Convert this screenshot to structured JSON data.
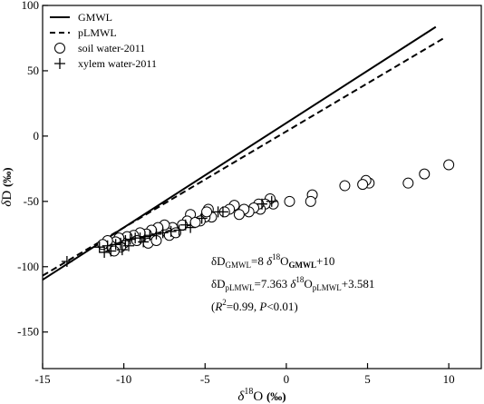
{
  "chart_data": {
    "type": "scatter",
    "title": "",
    "xlabel": {
      "prefix": "δ",
      "sup": "18",
      "main": "O",
      "unit": "(‰)"
    },
    "ylabel": {
      "prefix": "δ",
      "main": "D",
      "unit": "(‰)"
    },
    "xlim": [
      -15,
      12
    ],
    "ylim": [
      -178,
      100
    ],
    "xticks": [
      "-15",
      "-10",
      "-5",
      "0",
      "5",
      "10"
    ],
    "yticks": [
      "100",
      "50",
      "0",
      "-50",
      "-100",
      "-150"
    ],
    "legend_position": "top-left",
    "legend": [
      {
        "label": "GMWL",
        "symbol": "solid-line"
      },
      {
        "label": "pLMWL",
        "symbol": "dashed-line"
      },
      {
        "label": "soil water-2011",
        "symbol": "open-circle"
      },
      {
        "label": "xylem water-2011",
        "symbol": "plus"
      }
    ],
    "lines": [
      {
        "name": "GMWL",
        "slope": 8,
        "intercept": 10,
        "x_range": [
          -15,
          9.2
        ],
        "style": "solid"
      },
      {
        "name": "pLMWL",
        "slope": 7.363,
        "intercept": 3.581,
        "x_range": [
          -15,
          9.8
        ],
        "style": "dashed"
      }
    ],
    "series": [
      {
        "name": "soil water-2011",
        "marker": "circle",
        "points": [
          [
            10.0,
            -22
          ],
          [
            8.5,
            -29
          ],
          [
            7.5,
            -36
          ],
          [
            5.1,
            -36
          ],
          [
            4.9,
            -34
          ],
          [
            4.7,
            -37
          ],
          [
            3.6,
            -38
          ],
          [
            1.6,
            -45
          ],
          [
            1.5,
            -50
          ],
          [
            0.2,
            -50
          ],
          [
            -0.8,
            -52
          ],
          [
            -1.0,
            -48
          ],
          [
            -1.3,
            -52
          ],
          [
            -1.6,
            -56
          ],
          [
            -1.7,
            -52
          ],
          [
            -2.0,
            -55
          ],
          [
            -2.3,
            -58
          ],
          [
            -2.6,
            -56
          ],
          [
            -2.9,
            -60
          ],
          [
            -3.2,
            -53
          ],
          [
            -3.5,
            -56
          ],
          [
            -3.8,
            -58
          ],
          [
            -4.6,
            -62
          ],
          [
            -4.8,
            -56
          ],
          [
            -5.0,
            -62
          ],
          [
            -5.3,
            -65
          ],
          [
            -5.9,
            -60
          ],
          [
            -6.1,
            -65
          ],
          [
            -7.0,
            -70
          ],
          [
            -7.3,
            -74
          ],
          [
            -7.5,
            -68
          ],
          [
            -7.9,
            -70
          ],
          [
            -8.3,
            -72
          ],
          [
            -8.6,
            -75
          ],
          [
            -9.0,
            -74
          ],
          [
            -9.4,
            -76
          ],
          [
            -9.8,
            -77
          ],
          [
            -10.0,
            -82
          ],
          [
            -10.3,
            -78
          ],
          [
            -10.5,
            -81
          ],
          [
            -10.2,
            -85
          ],
          [
            -10.8,
            -84
          ],
          [
            -11.0,
            -80
          ],
          [
            -11.3,
            -83
          ],
          [
            -10.6,
            -88
          ],
          [
            -8.5,
            -82
          ],
          [
            -8.0,
            -80
          ],
          [
            -7.2,
            -76
          ],
          [
            -6.8,
            -74
          ],
          [
            -5.6,
            -66
          ],
          [
            -6.4,
            -68
          ],
          [
            -4.9,
            -58
          ],
          [
            -9.2,
            -80
          ]
        ]
      },
      {
        "name": "xylem water-2011",
        "marker": "plus",
        "points": [
          [
            -13.5,
            -96
          ],
          [
            -11.5,
            -85
          ],
          [
            -11.0,
            -84
          ],
          [
            -11.2,
            -89
          ],
          [
            -10.8,
            -88
          ],
          [
            -10.5,
            -83
          ],
          [
            -10.2,
            -82
          ],
          [
            -9.9,
            -80
          ],
          [
            -9.6,
            -79
          ],
          [
            -9.3,
            -78
          ],
          [
            -9.0,
            -78
          ],
          [
            -8.7,
            -77
          ],
          [
            -8.4,
            -76
          ],
          [
            -8.0,
            -75
          ],
          [
            -7.6,
            -74
          ],
          [
            -7.1,
            -73
          ],
          [
            -6.6,
            -72
          ],
          [
            -6.2,
            -68
          ],
          [
            -5.9,
            -70
          ],
          [
            -5.2,
            -63
          ],
          [
            -4.2,
            -58
          ],
          [
            -3.9,
            -58
          ],
          [
            -1.5,
            -52
          ],
          [
            -0.9,
            -50
          ],
          [
            -9.7,
            -84
          ],
          [
            -8.8,
            -81
          ],
          [
            -10.1,
            -87
          ]
        ]
      }
    ],
    "annotations": {
      "line1": {
        "a": "δD",
        "a_sub": "GMWL",
        "b": "=8 ",
        "c": "δ",
        "c_sup": "18",
        "d": "O",
        "d_sub": "GMWL",
        "e": "+10"
      },
      "line2": {
        "a": "δD",
        "a_sub": "pLMWL",
        "b": "=7.363 ",
        "c": "δ",
        "c_sup": "18",
        "d": "O",
        "d_sub": "pLMWL",
        "e": "+3.581"
      },
      "line3": {
        "open": "(",
        "r": "R",
        "r_sup": "2",
        "mid": "=0.99, ",
        "p": "P",
        "close": "<0.01)"
      }
    }
  }
}
